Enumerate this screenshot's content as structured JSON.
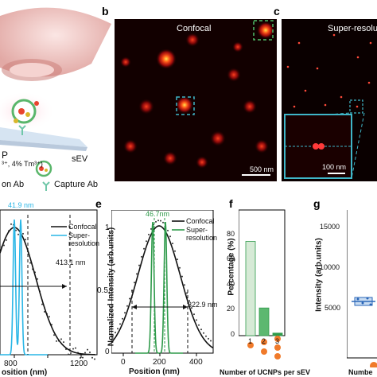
{
  "panels": {
    "a": {
      "labels": {
        "tm": "P",
        "tm_sub": "³⁺, 4% Tm³⁺)",
        "sev": "sEV",
        "det_ab": "on Ab",
        "cap_ab": "Capture Ab"
      }
    },
    "b": {
      "letter": "b",
      "title": "Confocal",
      "scale": "500 nm"
    },
    "c": {
      "letter": "c",
      "title": "Super-resolu",
      "scale": "100 nm"
    },
    "d": {
      "xlabel": "osition (nm)",
      "xticks": [
        "0",
        "800",
        "1200"
      ],
      "fwhm_sr": "41.9 nm",
      "fwhm_conf": "413.1 nm",
      "legend": {
        "confocal": "Confocal",
        "super1": "Super-",
        "super2": "resolution"
      },
      "colors": {
        "confocal": "#111111",
        "super": "#29b6e6"
      }
    },
    "e": {
      "letter": "e",
      "ylabel": "Normalized Intensity (arb.units)",
      "xlabel": "Position (nm)",
      "xticks": [
        "0",
        "200",
        "400"
      ],
      "yticks": [
        "0",
        "0.5",
        "1"
      ],
      "fwhm_sr": "46.7nm",
      "fwhm_conf": "322.9 nm",
      "legend": {
        "confocal": "Confocal",
        "super1": "Super-",
        "super2": "resolution"
      },
      "colors": {
        "confocal": "#111111",
        "super": "#2e9a4a"
      }
    },
    "f": {
      "letter": "f",
      "ylabel": "Percentage (%)",
      "yticks": [
        "0",
        "20",
        "40",
        "60",
        "80"
      ],
      "xlabel": "Number of UCNPs per sEV",
      "chart_data": {
        "type": "bar",
        "categories": [
          "1",
          "2",
          "3"
        ],
        "values": [
          75,
          22,
          2
        ],
        "ylim": [
          0,
          100
        ],
        "colors": [
          "#d6ead6",
          "#5cb870",
          "#2e9a4a"
        ]
      }
    },
    "g": {
      "letter": "g",
      "ylabel": "Intensity (arb.units)",
      "yticks": [
        "5000",
        "10000",
        "15000"
      ],
      "xlabel": "Numbe"
    }
  }
}
